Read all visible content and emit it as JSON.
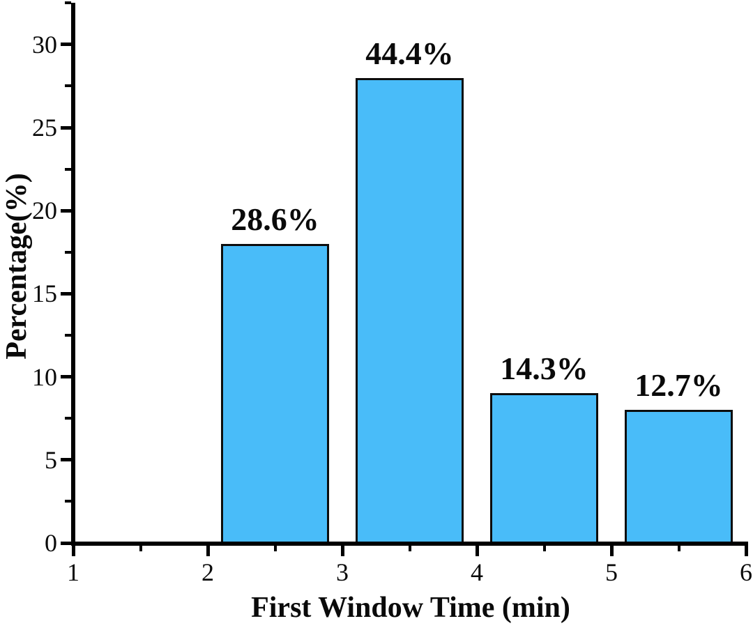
{
  "figure": {
    "background_color": "#ffffff",
    "text_color": "#0a0a0a",
    "axis_color": "#000000"
  },
  "chart_data": {
    "type": "bar",
    "title": "",
    "xlabel": "First Window Time (min)",
    "ylabel": "Percentage(%)",
    "x_centers": [
      2.5,
      3.5,
      4.5,
      5.5
    ],
    "bar_width": 0.8,
    "bar_heights_axis_units": [
      18,
      28,
      9,
      8
    ],
    "bar_labels": [
      "28.6%",
      "44.4%",
      "14.3%",
      "12.7%"
    ],
    "xlim": [
      1,
      6
    ],
    "ylim": [
      0,
      32.5
    ],
    "x_major_ticks": [
      1,
      2,
      3,
      4,
      5,
      6
    ],
    "x_major_tick_labels": [
      "1",
      "2",
      "3",
      "4",
      "5",
      "6"
    ],
    "x_minor_ticks": [
      1.5,
      2.5,
      3.5,
      4.5,
      5.5
    ],
    "y_major_ticks": [
      0,
      5,
      10,
      15,
      20,
      25,
      30
    ],
    "y_major_tick_labels": [
      "0",
      "5",
      "10",
      "15",
      "20",
      "25",
      "30"
    ],
    "y_minor_ticks": [
      2.5,
      7.5,
      12.5,
      17.5,
      22.5,
      27.5,
      32.5
    ],
    "grid": false,
    "legend": false,
    "colors": {
      "bar_fill": "#49BCF9",
      "bar_border": "#0d0d0d"
    }
  }
}
